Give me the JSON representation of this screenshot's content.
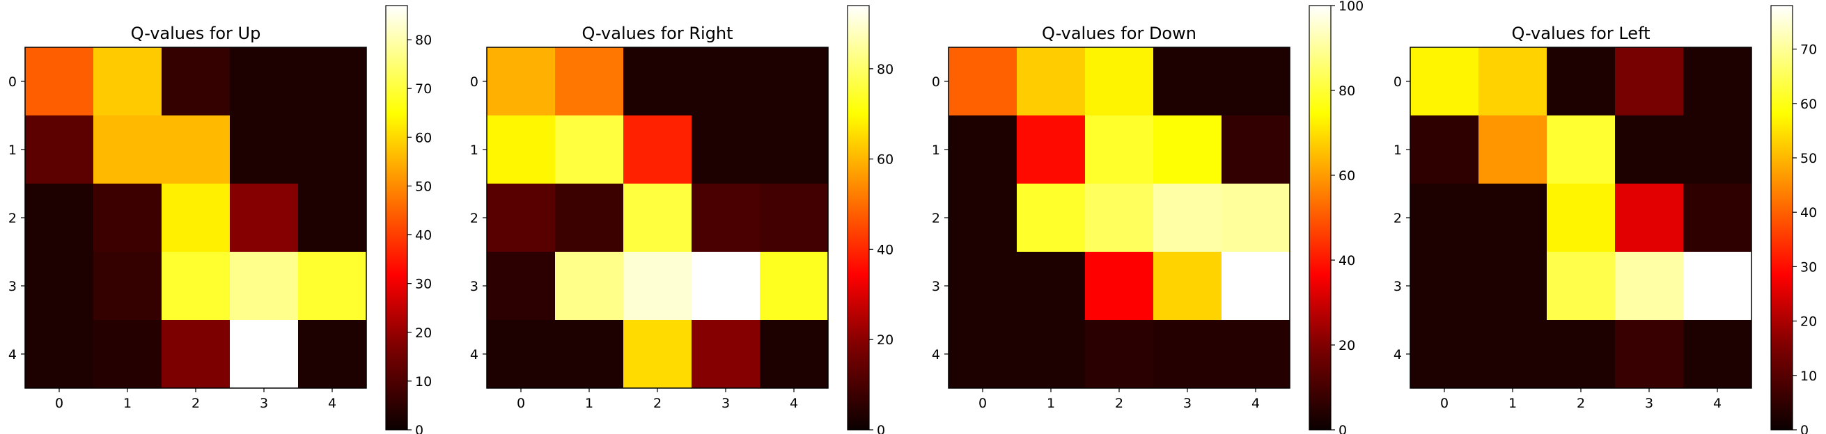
{
  "chart_data": [
    {
      "type": "heatmap",
      "title": "Q-values for Up",
      "rows": [
        "0",
        "1",
        "2",
        "3",
        "4"
      ],
      "cols": [
        "0",
        "1",
        "2",
        "3",
        "4"
      ],
      "values": [
        [
          44,
          58,
          3,
          0,
          0
        ],
        [
          8,
          56,
          56,
          0,
          0
        ],
        [
          0,
          4,
          63,
          13,
          0
        ],
        [
          0,
          3,
          69,
          77,
          69
        ],
        [
          0,
          1,
          12,
          87,
          0
        ]
      ],
      "colormap": "hot",
      "colorbar": {
        "min": 0,
        "max": 87,
        "ticks": [
          0,
          10,
          20,
          30,
          40,
          50,
          60,
          70,
          80
        ]
      }
    },
    {
      "type": "heatmap",
      "title": "Q-values for Right",
      "rows": [
        "0",
        "1",
        "2",
        "3",
        "4"
      ],
      "cols": [
        "0",
        "1",
        "2",
        "3",
        "4"
      ],
      "values": [
        [
          59,
          51,
          0,
          0,
          0
        ],
        [
          69,
          76,
          39,
          0,
          0
        ],
        [
          8,
          4,
          76,
          6,
          5
        ],
        [
          2,
          83,
          90,
          94,
          73
        ],
        [
          0,
          0,
          65,
          14,
          0
        ]
      ],
      "colormap": "hot",
      "colorbar": {
        "min": 0,
        "max": 94,
        "ticks": [
          0,
          20,
          40,
          60,
          80
        ]
      }
    },
    {
      "type": "heatmap",
      "title": "Q-values for Down",
      "rows": [
        "0",
        "1",
        "2",
        "3",
        "4"
      ],
      "cols": [
        "0",
        "1",
        "2",
        "3",
        "4"
      ],
      "values": [
        [
          51,
          67,
          73,
          0,
          0
        ],
        [
          0,
          38,
          79,
          75,
          3
        ],
        [
          0,
          79,
          84,
          91,
          90
        ],
        [
          0,
          0,
          34,
          68,
          100
        ],
        [
          0,
          0,
          2,
          1,
          1
        ]
      ],
      "colormap": "hot",
      "colorbar": {
        "min": 0,
        "max": 100,
        "ticks": [
          0,
          20,
          40,
          60,
          80,
          100
        ]
      }
    },
    {
      "type": "heatmap",
      "title": "Q-values for Left",
      "rows": [
        "0",
        "1",
        "2",
        "3",
        "4"
      ],
      "cols": [
        "0",
        "1",
        "2",
        "3",
        "4"
      ],
      "values": [
        [
          57,
          53,
          0,
          10,
          0
        ],
        [
          2,
          46,
          62,
          0,
          0
        ],
        [
          0,
          0,
          57,
          22,
          2
        ],
        [
          0,
          0,
          64,
          71,
          78
        ],
        [
          0,
          0,
          0,
          3,
          0
        ]
      ],
      "colormap": "hot",
      "colorbar": {
        "min": 0,
        "max": 78,
        "ticks": [
          0,
          10,
          20,
          30,
          40,
          50,
          60,
          70
        ]
      }
    }
  ]
}
